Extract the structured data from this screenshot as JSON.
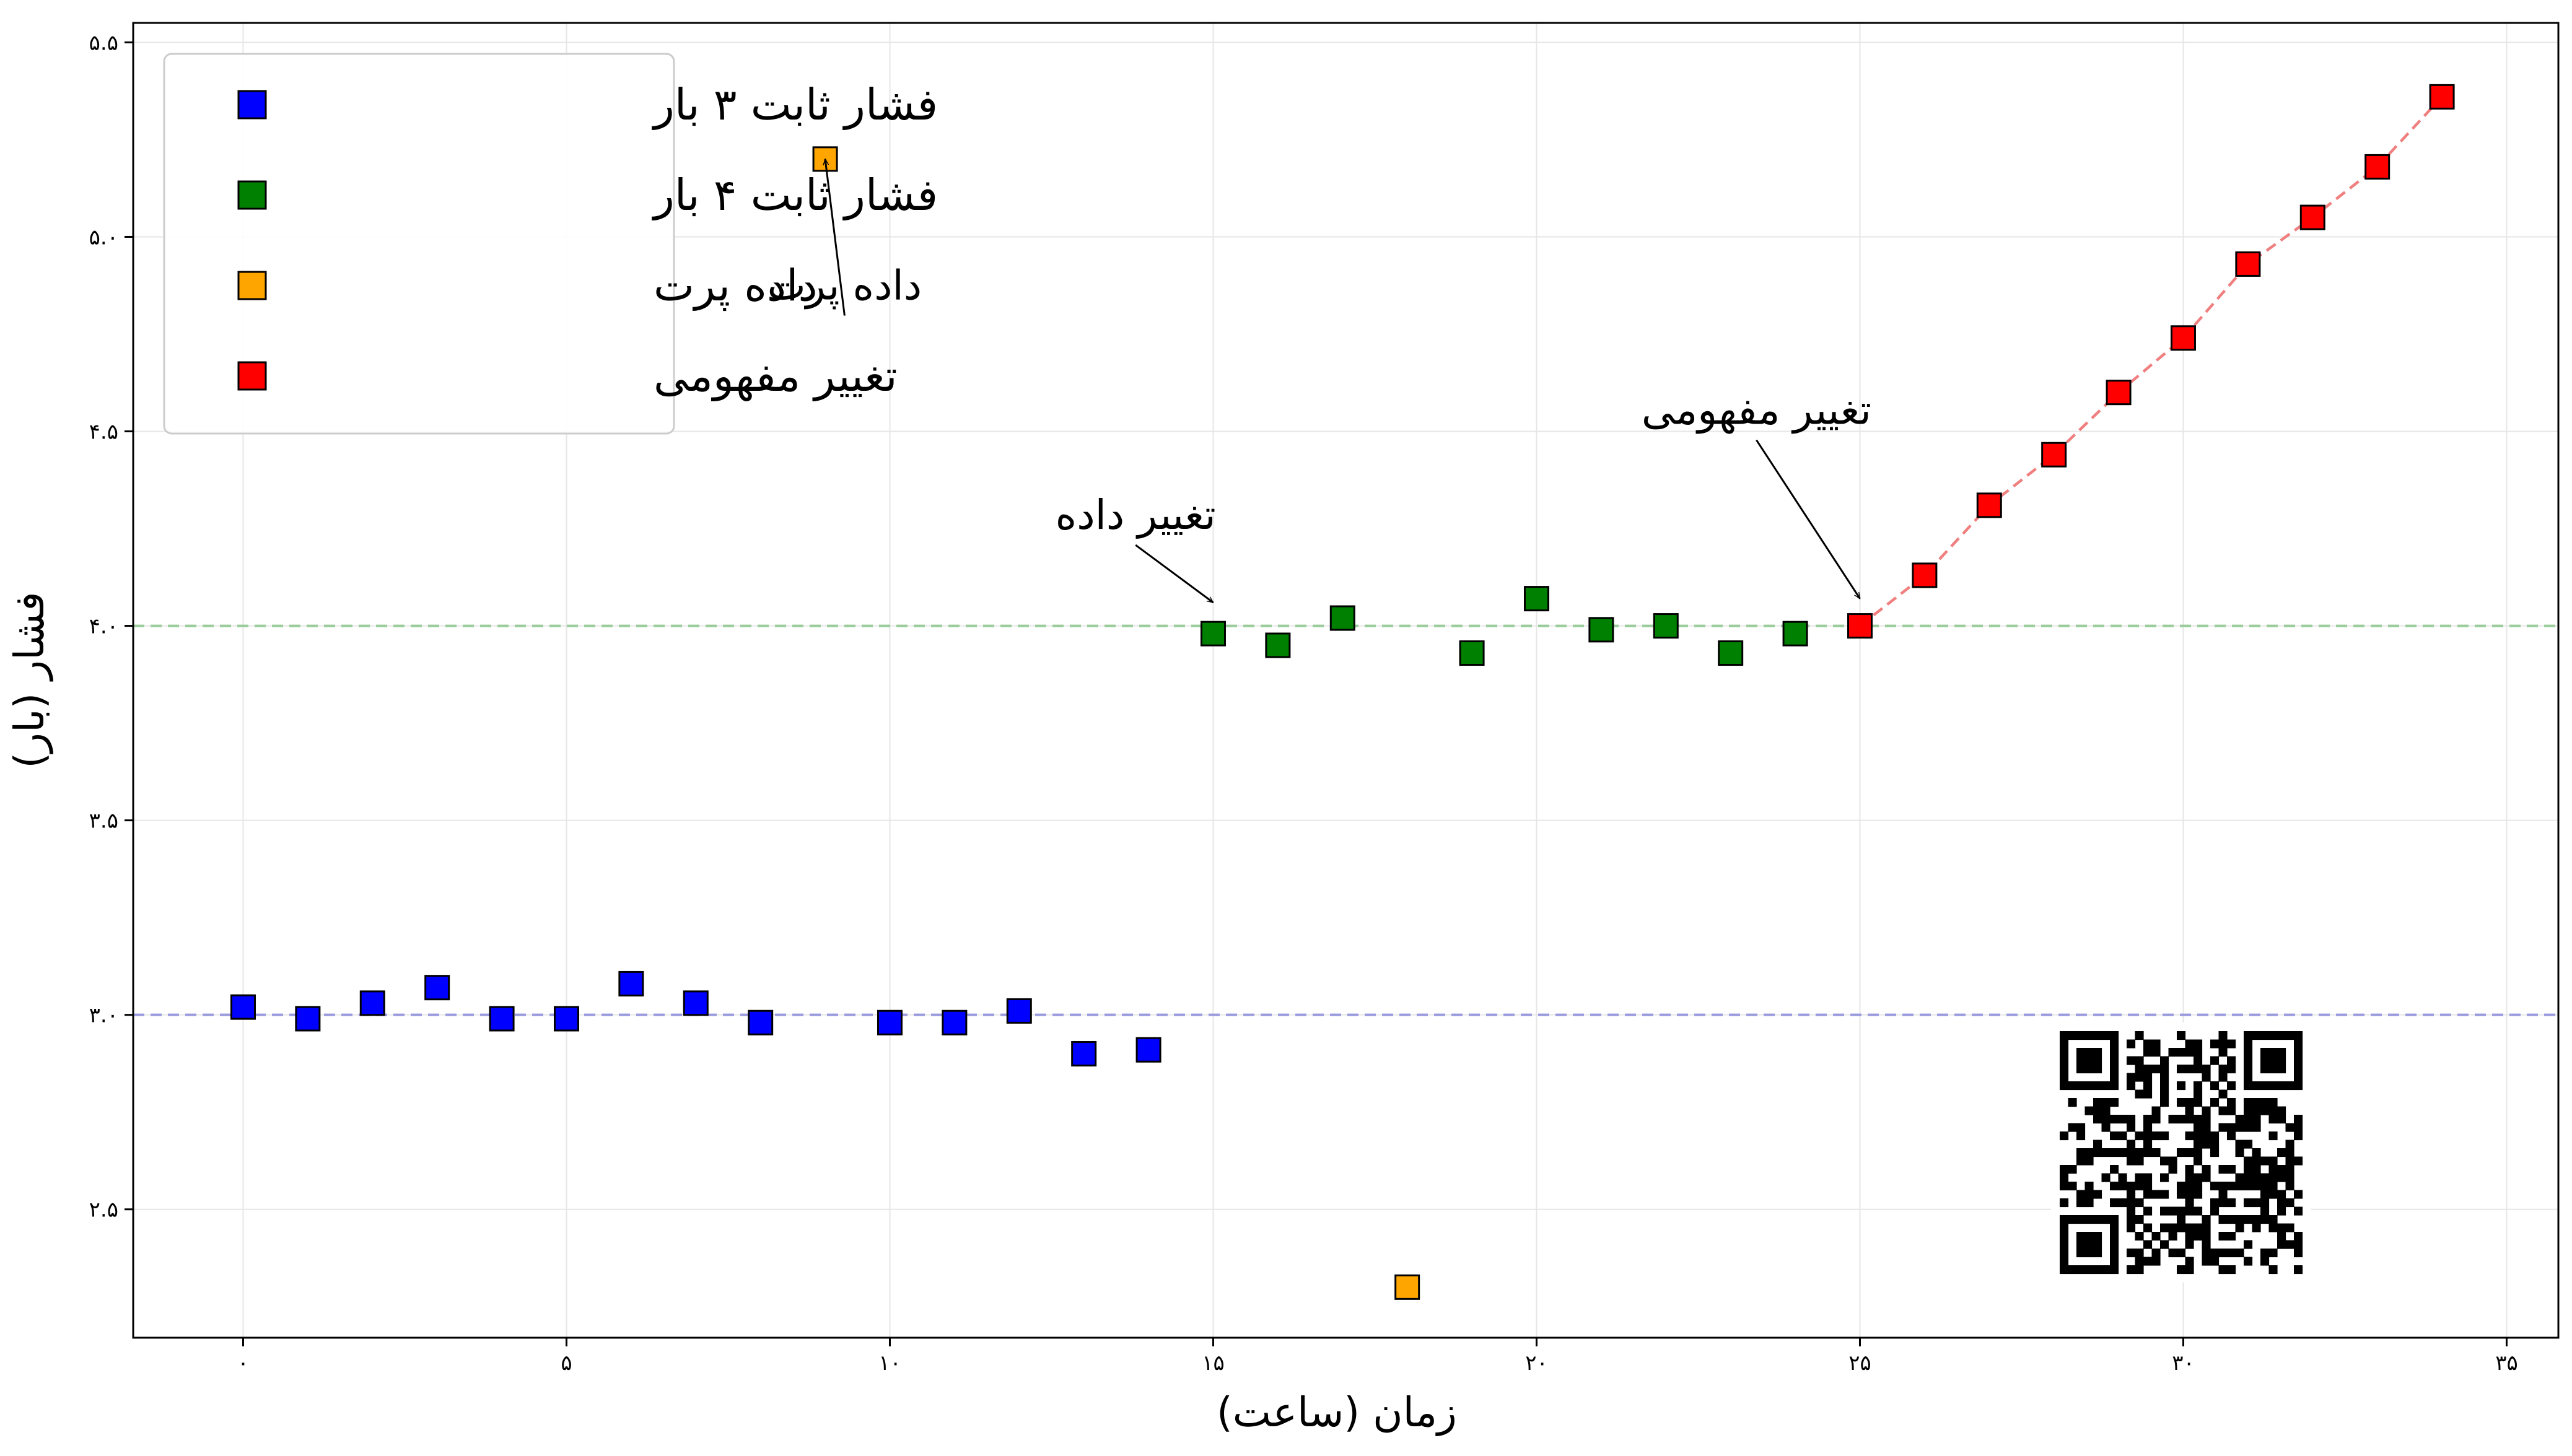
{
  "chart_data": {
    "type": "scatter",
    "xlabel": "زمان (ساعت)",
    "ylabel": "فشار (بار)",
    "xlim": [
      -1.7,
      35.8
    ],
    "ylim": [
      2.17,
      5.55
    ],
    "x_ticks": [
      0,
      5,
      10,
      15,
      20,
      25,
      30,
      35
    ],
    "y_ticks": [
      2.5,
      3.0,
      3.5,
      4.0,
      4.5,
      5.0,
      5.5
    ],
    "x_tick_labels": [
      "۰",
      "۵",
      "۱۰",
      "۱۵",
      "۲۰",
      "۲۵",
      "۳۰",
      "۳۵"
    ],
    "y_tick_labels": [
      "۲.۵",
      "۳.۰",
      "۳.۵",
      "۴.۰",
      "۴.۵",
      "۵.۰",
      "۵.۵"
    ],
    "grid": true,
    "legend_position": "upper-left",
    "reference_lines": [
      {
        "y": 3.0,
        "color": "#9999dd"
      },
      {
        "y": 4.0,
        "color": "#99cc99"
      }
    ],
    "series": [
      {
        "name": "فشار ثابت ۳ بار",
        "color": "#0000ff",
        "points": [
          [
            0,
            3.02
          ],
          [
            1,
            2.99
          ],
          [
            2,
            3.03
          ],
          [
            3,
            3.07
          ],
          [
            4,
            2.99
          ],
          [
            5,
            2.99
          ],
          [
            6,
            3.08
          ],
          [
            7,
            3.03
          ],
          [
            8,
            2.98
          ],
          [
            10,
            2.98
          ],
          [
            11,
            2.98
          ],
          [
            12,
            3.01
          ],
          [
            13,
            2.9
          ],
          [
            14,
            2.91
          ]
        ]
      },
      {
        "name": "فشار ثابت ۴ بار",
        "color": "#008000",
        "points": [
          [
            15,
            3.98
          ],
          [
            16,
            3.95
          ],
          [
            17,
            4.02
          ],
          [
            19,
            3.93
          ],
          [
            20,
            4.07
          ],
          [
            21,
            3.99
          ],
          [
            22,
            4.0
          ],
          [
            23,
            3.93
          ],
          [
            24,
            3.98
          ]
        ]
      },
      {
        "name": "داده پرت",
        "color": "#ffa500",
        "points": [
          [
            9,
            5.2
          ],
          [
            18,
            2.3
          ]
        ]
      },
      {
        "name": "تغییر مفهومی",
        "color": "#ff0000",
        "dashed_line_color": "#f08080",
        "points": [
          [
            25,
            4.0
          ],
          [
            26,
            4.13
          ],
          [
            27,
            4.31
          ],
          [
            28,
            4.44
          ],
          [
            29,
            4.6
          ],
          [
            30,
            4.74
          ],
          [
            31,
            4.93
          ],
          [
            32,
            5.05
          ],
          [
            33,
            5.18
          ],
          [
            34,
            5.36
          ]
        ]
      }
    ],
    "annotations": [
      {
        "text": "داده پرت",
        "point": [
          9,
          5.2
        ],
        "label_at": [
          9.3,
          4.82
        ]
      },
      {
        "text": "تغییر داده",
        "point": [
          15,
          4.06
        ],
        "label_at": [
          13.8,
          4.23
        ]
      },
      {
        "text": "تغییر مفهومی",
        "point": [
          25,
          4.07
        ],
        "label_at": [
          23.4,
          4.5
        ]
      }
    ]
  },
  "qr_code": {
    "icon": "qr-code-icon"
  }
}
